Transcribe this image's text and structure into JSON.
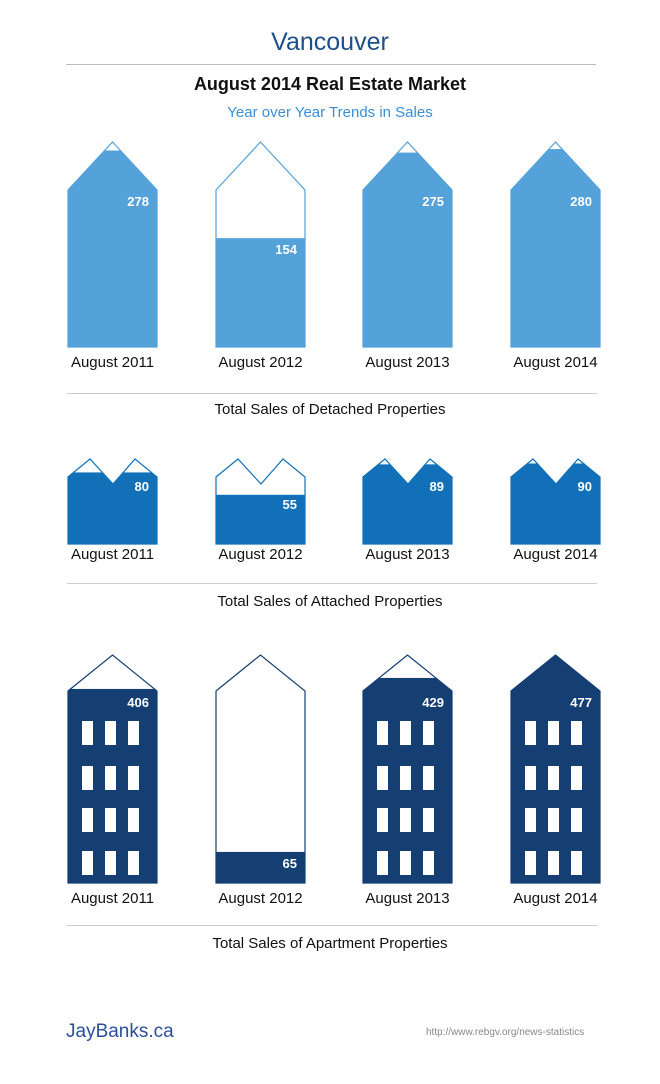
{
  "header": {
    "city": "Vancouver",
    "title": "August 2014 Real Estate Market",
    "subtitle": "Year over Year Trends in Sales"
  },
  "chart_data": [
    {
      "type": "bar",
      "title": "Total Sales of Detached Properties",
      "categories": [
        "August 2011",
        "August 2012",
        "August 2013",
        "August 2014"
      ],
      "values": [
        278,
        154,
        275,
        280
      ],
      "color": "#55a1d9",
      "shape": "house"
    },
    {
      "type": "bar",
      "title": "Total Sales of Attached Properties",
      "categories": [
        "August 2011",
        "August 2012",
        "August 2013",
        "August 2014"
      ],
      "values": [
        80,
        55,
        89,
        90
      ],
      "color": "#1170b8",
      "shape": "townhouse"
    },
    {
      "type": "bar",
      "title": "Total Sales of Apartment Properties",
      "categories": [
        "August 2011",
        "August 2012",
        "August 2013",
        "August 2014"
      ],
      "values": [
        406,
        65,
        429,
        477
      ],
      "color": "#153f73",
      "shape": "apartment"
    }
  ],
  "footer": {
    "brand": "JayBanks.ca",
    "source": "http://www.rebgv.org/news-statistics"
  }
}
